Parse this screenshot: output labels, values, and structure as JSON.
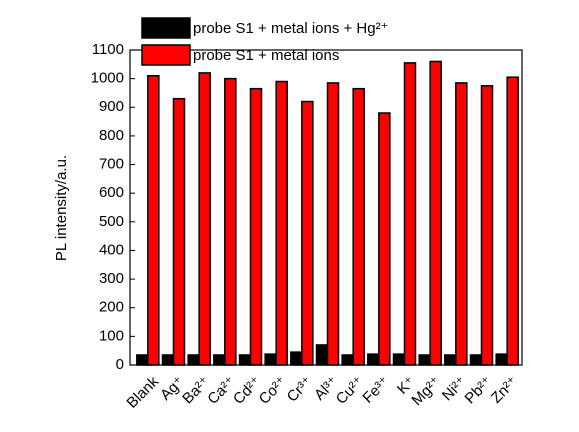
{
  "chart_data": {
    "type": "bar",
    "y_label": "PL intensity/a.u.",
    "categories": [
      "Blank",
      "Ag⁺",
      "Ba²⁺",
      "Ca²⁺",
      "Cd²⁺",
      "Co²⁺",
      "Cr³⁺",
      "Al³⁺",
      "Cu²⁺",
      "Fe³⁺",
      "K⁺",
      "Mg²⁺",
      "Ni²⁺",
      "Pb²⁺",
      "Zn²⁺"
    ],
    "series": [
      {
        "name": "probe S1 + metal ions + Hg²⁺",
        "color": "#000000",
        "values": [
          35,
          35,
          35,
          35,
          35,
          38,
          45,
          70,
          35,
          38,
          38,
          35,
          35,
          35,
          38
        ]
      },
      {
        "name": "probe S1 + metal ions",
        "color": "#ff0000",
        "values": [
          1010,
          930,
          1020,
          1000,
          965,
          990,
          920,
          985,
          965,
          880,
          1055,
          1060,
          985,
          975,
          1005
        ]
      }
    ],
    "ylim": [
      0,
      1100
    ],
    "yticks": [
      0,
      100,
      200,
      300,
      400,
      500,
      600,
      700,
      800,
      900,
      1000,
      1100
    ]
  }
}
